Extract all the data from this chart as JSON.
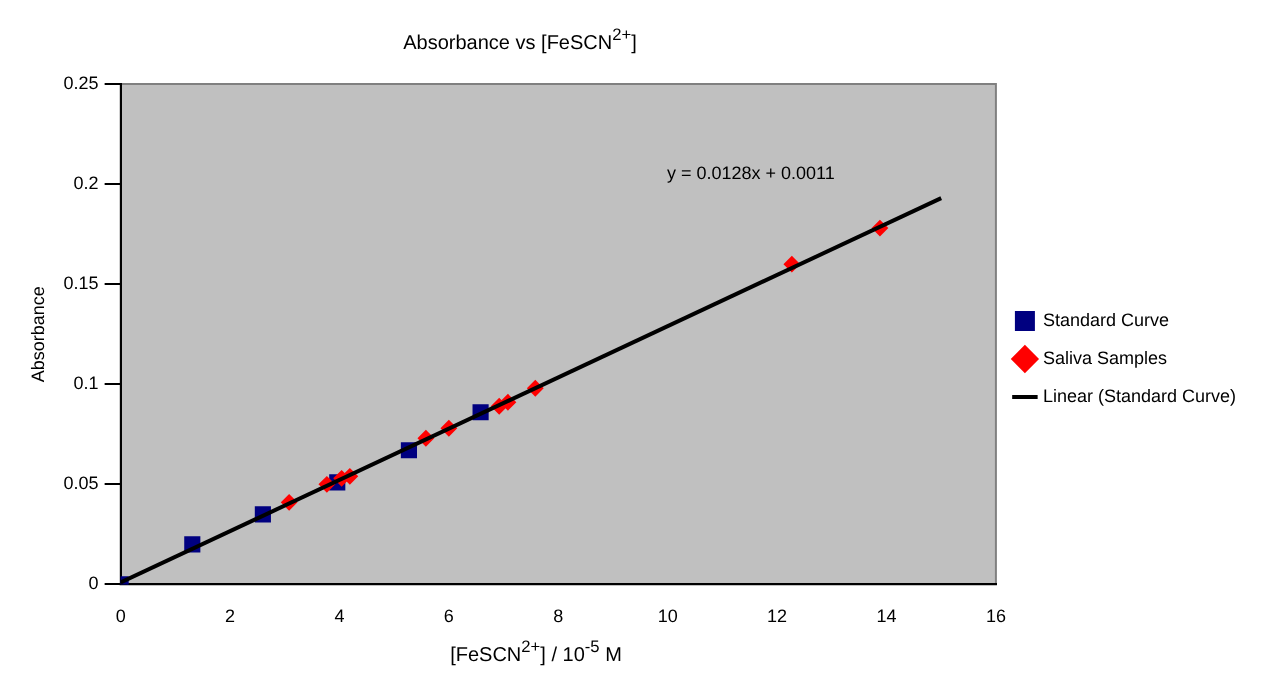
{
  "chart_data": {
    "type": "scatter",
    "title": "Absorbance vs [FeSCN$^{2+}$]",
    "xlabel": "[FeSCN$^{2+}$] / 10$^{-5}$ M",
    "ylabel": "Absorbance",
    "xlim": [
      0,
      16
    ],
    "xticks": [
      0,
      2,
      4,
      6,
      8,
      10,
      12,
      14,
      16
    ],
    "ylim": [
      0,
      0.25
    ],
    "yticks": [
      0,
      0.05,
      0.1,
      0.15,
      0.2,
      0.25
    ],
    "grid": false,
    "legend": "right",
    "annotations": [
      "y = 0.0128x + 0.0011"
    ],
    "series": [
      {
        "name": "Standard Curve",
        "marker": "square",
        "color": "#000080",
        "x": [
          0,
          1.31,
          2.6,
          3.96,
          5.27,
          6.58
        ],
        "values": [
          0,
          0.02,
          0.035,
          0.051,
          0.067,
          0.086
        ]
      },
      {
        "name": "Saliva Samples",
        "marker": "diamond",
        "color": "#ff0000",
        "x": [
          3.08,
          3.77,
          4.04,
          4.19,
          5.58,
          6.0,
          6.92,
          7.08,
          7.58,
          12.27,
          13.88
        ],
        "values": [
          0.041,
          0.05,
          0.053,
          0.054,
          0.073,
          0.078,
          0.089,
          0.091,
          0.098,
          0.16,
          0.178
        ]
      },
      {
        "name": "Linear (Standard Curve)",
        "type": "line",
        "marker": "none",
        "line_style": "solid",
        "color": "#000000",
        "x": [
          0,
          15
        ],
        "values": [
          0.001,
          0.193
        ]
      }
    ]
  }
}
